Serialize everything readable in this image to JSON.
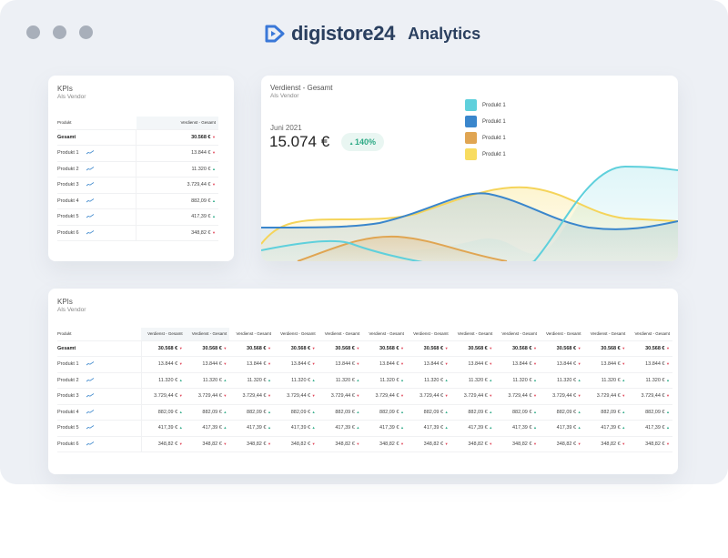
{
  "app": {
    "brand": "digistore24",
    "title": "Analytics"
  },
  "kpi_small": {
    "title": "KPIs",
    "subtitle": "Als Vendor",
    "col_product": "Produkt",
    "col_value": "Verdienst - Gesamt",
    "rows": [
      {
        "name": "Gesamt",
        "value": "30.568 €",
        "trend": "down"
      },
      {
        "name": "Produkt 1",
        "value": "13.844 €",
        "trend": "down"
      },
      {
        "name": "Produkt 2",
        "value": "11.320 €",
        "trend": "up"
      },
      {
        "name": "Produkt 3",
        "value": "3.729,44 €",
        "trend": "down"
      },
      {
        "name": "Produkt 4",
        "value": "882,09 €",
        "trend": "up"
      },
      {
        "name": "Produkt 5",
        "value": "417,39 €",
        "trend": "up"
      },
      {
        "name": "Produkt 6",
        "value": "348,82 €",
        "trend": "down"
      }
    ]
  },
  "chart_card": {
    "title": "Verdienst - Gesamt",
    "subtitle": "Als Vendor",
    "period": "Juni 2021",
    "value": "15.074 €",
    "change": "140%",
    "legend": [
      {
        "label": "Produkt 1",
        "color": "#5fd0dc"
      },
      {
        "label": "Produkt 1",
        "color": "#3a86cc"
      },
      {
        "label": "Produkt 1",
        "color": "#e0a552"
      },
      {
        "label": "Produkt 1",
        "color": "#f8dc60"
      }
    ]
  },
  "kpi_large": {
    "title": "KPIs",
    "subtitle": "Als Vendor",
    "col_product": "Produkt",
    "col_value": "Verdienst - Gesamt",
    "columns": 12
  },
  "colors": {
    "brand": "#2a3f5f",
    "up": "#3bb08f",
    "down": "#e0475a"
  }
}
